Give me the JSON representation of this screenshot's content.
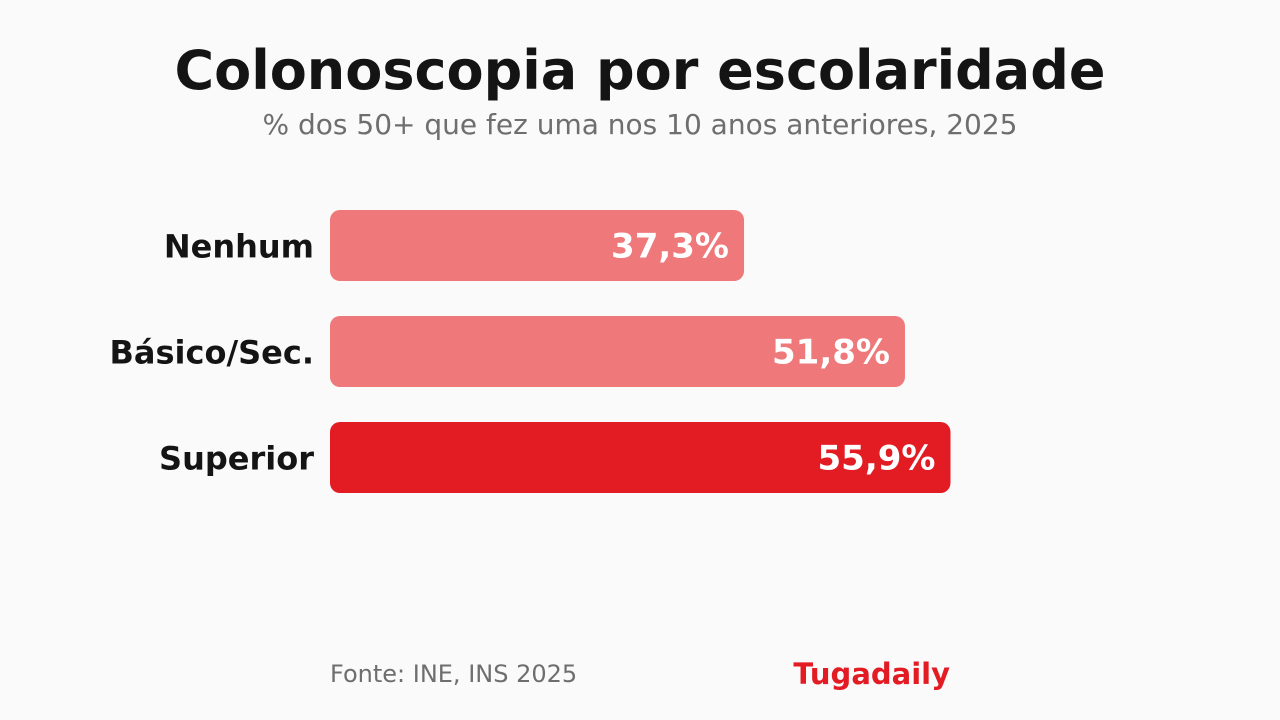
{
  "chart_data": {
    "type": "bar",
    "orientation": "horizontal",
    "title": "Colonoscopia por escolaridade",
    "subtitle": "% dos 50+ que fez uma nos 10 anos anteriores, 2025",
    "categories": [
      "Nenhum",
      "Básico/Sec.",
      "Superior"
    ],
    "values": [
      37.3,
      51.8,
      55.9
    ],
    "value_labels": [
      "37,3%",
      "51,8%",
      "55,9%"
    ],
    "xlim": [
      0,
      100
    ],
    "grid": false,
    "legend": "none",
    "colors": {
      "default": "#ee787a",
      "highlight": "#e31b23",
      "highlight_category": "Superior"
    }
  },
  "footer": {
    "source": "Fonte: INE, INS 2025",
    "brand": "Tugadaily"
  }
}
